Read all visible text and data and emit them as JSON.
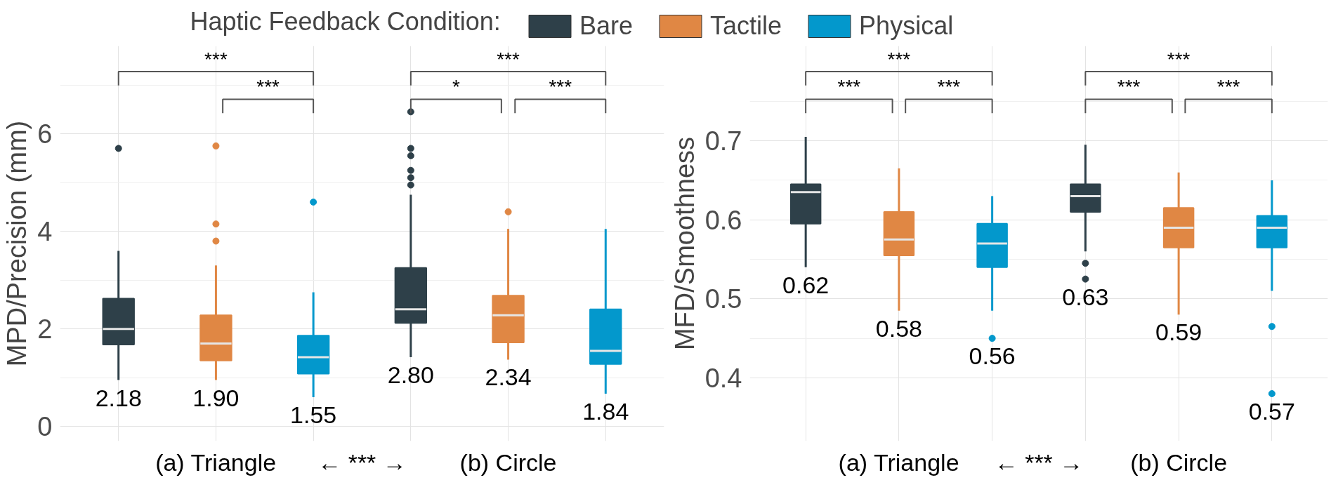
{
  "chart_data": [
    {
      "type": "box",
      "ylabel": "MPD/Precision (mm)",
      "categories": [
        "(a) Triangle",
        "(b) Circle"
      ],
      "ylim": [
        -0.3,
        7.8
      ],
      "yticks": [
        0,
        2,
        4,
        6
      ],
      "grid": true,
      "legend": "top",
      "legend_title": "Haptic Feedback Condition:",
      "marker": "circle",
      "annotations": [
        "← *** →",
        "***",
        "***",
        "***",
        "*",
        "***"
      ],
      "series": [
        {
          "name": "Bare",
          "color": "#2e4049",
          "value_labels": [
            "2.18",
            "2.80"
          ],
          "boxes": [
            {
              "low": 0.95,
              "q1": 1.68,
              "median": 2.0,
              "q3": 2.62,
              "high": 3.6,
              "outliers": [
                5.7
              ]
            },
            {
              "low": 1.42,
              "q1": 2.12,
              "median": 2.4,
              "q3": 3.25,
              "high": 4.75,
              "outliers": [
                4.95,
                5.1,
                5.25,
                5.55,
                5.7,
                6.45
              ]
            }
          ]
        },
        {
          "name": "Tactile",
          "color": "#e08744",
          "value_labels": [
            "1.90",
            "2.34"
          ],
          "boxes": [
            {
              "low": 0.95,
              "q1": 1.35,
              "median": 1.7,
              "q3": 2.28,
              "high": 3.3,
              "outliers": [
                3.8,
                4.15,
                5.75
              ]
            },
            {
              "low": 1.37,
              "q1": 1.72,
              "median": 2.28,
              "q3": 2.68,
              "high": 4.05,
              "outliers": [
                4.4
              ]
            }
          ]
        },
        {
          "name": "Physical",
          "color": "#0398cc",
          "value_labels": [
            "1.55",
            "1.84"
          ],
          "boxes": [
            {
              "low": 0.6,
              "q1": 1.08,
              "median": 1.42,
              "q3": 1.86,
              "high": 2.75,
              "outliers": [
                4.6
              ]
            },
            {
              "low": 0.67,
              "q1": 1.28,
              "median": 1.55,
              "q3": 2.4,
              "high": 4.05
            }
          ]
        }
      ]
    },
    {
      "type": "box",
      "ylabel": "MFD/Smoothness",
      "categories": [
        "(a) Triangle",
        "(b) Circle"
      ],
      "ylim": [
        0.32,
        0.82
      ],
      "yticks": [
        0.4,
        0.5,
        0.6,
        0.7
      ],
      "grid": true,
      "marker": "circle",
      "annotations": [
        "← *** →",
        "***",
        "***",
        "***",
        "***",
        "***",
        "***"
      ],
      "series": [
        {
          "color": "#2e4049",
          "value_labels": [
            "0.62",
            "0.63"
          ],
          "boxes": [
            {
              "low": 0.54,
              "q1": 0.595,
              "median": 0.635,
              "q3": 0.645,
              "high": 0.705
            },
            {
              "low": 0.56,
              "q1": 0.61,
              "median": 0.63,
              "q3": 0.645,
              "high": 0.695,
              "outliers": [
                0.545,
                0.525
              ]
            }
          ]
        },
        {
          "color": "#e08744",
          "value_labels": [
            "0.58",
            "0.59"
          ],
          "boxes": [
            {
              "low": 0.485,
              "q1": 0.555,
              "median": 0.575,
              "q3": 0.61,
              "high": 0.665
            },
            {
              "low": 0.48,
              "q1": 0.565,
              "median": 0.59,
              "q3": 0.615,
              "high": 0.66
            }
          ]
        },
        {
          "color": "#0398cc",
          "value_labels": [
            "0.56",
            "0.57"
          ],
          "boxes": [
            {
              "low": 0.485,
              "q1": 0.54,
              "median": 0.57,
              "q3": 0.595,
              "high": 0.63,
              "outliers": [
                0.45
              ]
            },
            {
              "low": 0.51,
              "q1": 0.565,
              "median": 0.59,
              "q3": 0.605,
              "high": 0.65,
              "outliers": [
                0.465,
                0.38
              ]
            }
          ]
        }
      ]
    }
  ]
}
